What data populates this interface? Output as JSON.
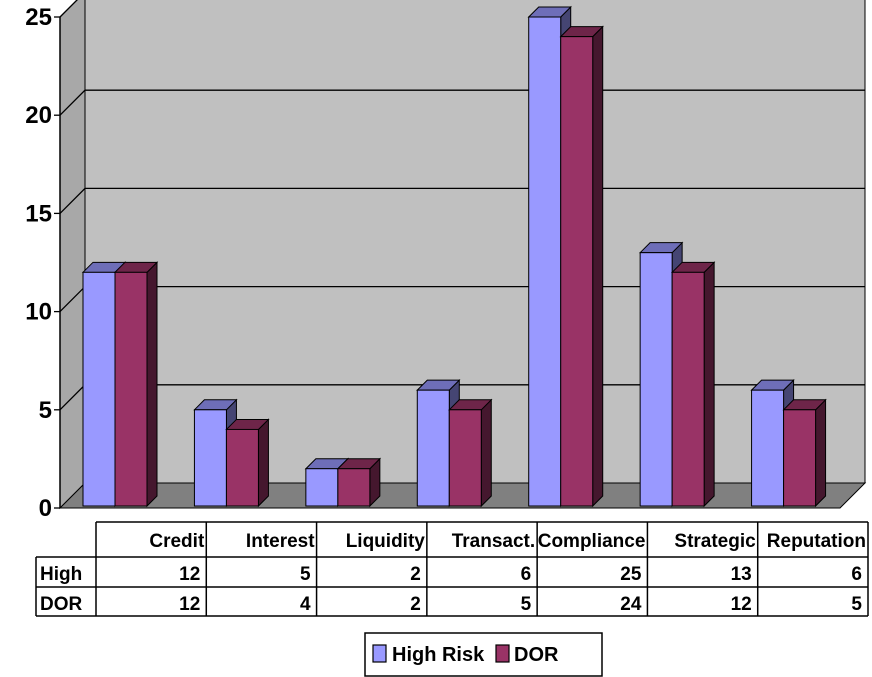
{
  "chart_data": {
    "type": "bar",
    "categories": [
      "Credit",
      "Interest",
      "Liquidity",
      "Transact.",
      "Compliance",
      "Strategic",
      "Reputation"
    ],
    "series": [
      {
        "name": "High Risk",
        "row_label": "High",
        "color": "#9999ff",
        "values": [
          12,
          5,
          2,
          6,
          25,
          13,
          6
        ]
      },
      {
        "name": "DOR",
        "row_label": "DOR",
        "color": "#993366",
        "values": [
          12,
          4,
          2,
          5,
          24,
          12,
          5
        ]
      }
    ],
    "ylim": [
      0,
      25
    ],
    "yticks": [
      "0",
      "5",
      "10",
      "15",
      "20",
      "25"
    ],
    "grid": true,
    "legend": "bottom",
    "plot_background": "#c0c0c0",
    "data_table": true
  }
}
